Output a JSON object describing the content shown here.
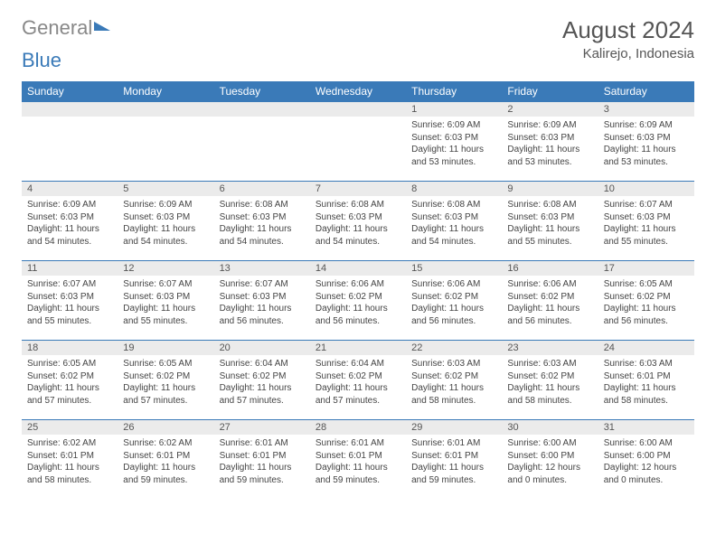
{
  "brand": {
    "part1": "General",
    "part2": "Blue"
  },
  "title": "August 2024",
  "location": "Kalirejo, Indonesia",
  "colors": {
    "header_bg": "#3a7ab8",
    "daynum_bg": "#ebebeb",
    "text": "#444444",
    "title": "#555555"
  },
  "dayHeaders": [
    "Sunday",
    "Monday",
    "Tuesday",
    "Wednesday",
    "Thursday",
    "Friday",
    "Saturday"
  ],
  "weeks": [
    [
      {
        "n": "",
        "sr": "",
        "ss": "",
        "dl": ""
      },
      {
        "n": "",
        "sr": "",
        "ss": "",
        "dl": ""
      },
      {
        "n": "",
        "sr": "",
        "ss": "",
        "dl": ""
      },
      {
        "n": "",
        "sr": "",
        "ss": "",
        "dl": ""
      },
      {
        "n": "1",
        "sr": "Sunrise: 6:09 AM",
        "ss": "Sunset: 6:03 PM",
        "dl": "Daylight: 11 hours and 53 minutes."
      },
      {
        "n": "2",
        "sr": "Sunrise: 6:09 AM",
        "ss": "Sunset: 6:03 PM",
        "dl": "Daylight: 11 hours and 53 minutes."
      },
      {
        "n": "3",
        "sr": "Sunrise: 6:09 AM",
        "ss": "Sunset: 6:03 PM",
        "dl": "Daylight: 11 hours and 53 minutes."
      }
    ],
    [
      {
        "n": "4",
        "sr": "Sunrise: 6:09 AM",
        "ss": "Sunset: 6:03 PM",
        "dl": "Daylight: 11 hours and 54 minutes."
      },
      {
        "n": "5",
        "sr": "Sunrise: 6:09 AM",
        "ss": "Sunset: 6:03 PM",
        "dl": "Daylight: 11 hours and 54 minutes."
      },
      {
        "n": "6",
        "sr": "Sunrise: 6:08 AM",
        "ss": "Sunset: 6:03 PM",
        "dl": "Daylight: 11 hours and 54 minutes."
      },
      {
        "n": "7",
        "sr": "Sunrise: 6:08 AM",
        "ss": "Sunset: 6:03 PM",
        "dl": "Daylight: 11 hours and 54 minutes."
      },
      {
        "n": "8",
        "sr": "Sunrise: 6:08 AM",
        "ss": "Sunset: 6:03 PM",
        "dl": "Daylight: 11 hours and 54 minutes."
      },
      {
        "n": "9",
        "sr": "Sunrise: 6:08 AM",
        "ss": "Sunset: 6:03 PM",
        "dl": "Daylight: 11 hours and 55 minutes."
      },
      {
        "n": "10",
        "sr": "Sunrise: 6:07 AM",
        "ss": "Sunset: 6:03 PM",
        "dl": "Daylight: 11 hours and 55 minutes."
      }
    ],
    [
      {
        "n": "11",
        "sr": "Sunrise: 6:07 AM",
        "ss": "Sunset: 6:03 PM",
        "dl": "Daylight: 11 hours and 55 minutes."
      },
      {
        "n": "12",
        "sr": "Sunrise: 6:07 AM",
        "ss": "Sunset: 6:03 PM",
        "dl": "Daylight: 11 hours and 55 minutes."
      },
      {
        "n": "13",
        "sr": "Sunrise: 6:07 AM",
        "ss": "Sunset: 6:03 PM",
        "dl": "Daylight: 11 hours and 56 minutes."
      },
      {
        "n": "14",
        "sr": "Sunrise: 6:06 AM",
        "ss": "Sunset: 6:02 PM",
        "dl": "Daylight: 11 hours and 56 minutes."
      },
      {
        "n": "15",
        "sr": "Sunrise: 6:06 AM",
        "ss": "Sunset: 6:02 PM",
        "dl": "Daylight: 11 hours and 56 minutes."
      },
      {
        "n": "16",
        "sr": "Sunrise: 6:06 AM",
        "ss": "Sunset: 6:02 PM",
        "dl": "Daylight: 11 hours and 56 minutes."
      },
      {
        "n": "17",
        "sr": "Sunrise: 6:05 AM",
        "ss": "Sunset: 6:02 PM",
        "dl": "Daylight: 11 hours and 56 minutes."
      }
    ],
    [
      {
        "n": "18",
        "sr": "Sunrise: 6:05 AM",
        "ss": "Sunset: 6:02 PM",
        "dl": "Daylight: 11 hours and 57 minutes."
      },
      {
        "n": "19",
        "sr": "Sunrise: 6:05 AM",
        "ss": "Sunset: 6:02 PM",
        "dl": "Daylight: 11 hours and 57 minutes."
      },
      {
        "n": "20",
        "sr": "Sunrise: 6:04 AM",
        "ss": "Sunset: 6:02 PM",
        "dl": "Daylight: 11 hours and 57 minutes."
      },
      {
        "n": "21",
        "sr": "Sunrise: 6:04 AM",
        "ss": "Sunset: 6:02 PM",
        "dl": "Daylight: 11 hours and 57 minutes."
      },
      {
        "n": "22",
        "sr": "Sunrise: 6:03 AM",
        "ss": "Sunset: 6:02 PM",
        "dl": "Daylight: 11 hours and 58 minutes."
      },
      {
        "n": "23",
        "sr": "Sunrise: 6:03 AM",
        "ss": "Sunset: 6:02 PM",
        "dl": "Daylight: 11 hours and 58 minutes."
      },
      {
        "n": "24",
        "sr": "Sunrise: 6:03 AM",
        "ss": "Sunset: 6:01 PM",
        "dl": "Daylight: 11 hours and 58 minutes."
      }
    ],
    [
      {
        "n": "25",
        "sr": "Sunrise: 6:02 AM",
        "ss": "Sunset: 6:01 PM",
        "dl": "Daylight: 11 hours and 58 minutes."
      },
      {
        "n": "26",
        "sr": "Sunrise: 6:02 AM",
        "ss": "Sunset: 6:01 PM",
        "dl": "Daylight: 11 hours and 59 minutes."
      },
      {
        "n": "27",
        "sr": "Sunrise: 6:01 AM",
        "ss": "Sunset: 6:01 PM",
        "dl": "Daylight: 11 hours and 59 minutes."
      },
      {
        "n": "28",
        "sr": "Sunrise: 6:01 AM",
        "ss": "Sunset: 6:01 PM",
        "dl": "Daylight: 11 hours and 59 minutes."
      },
      {
        "n": "29",
        "sr": "Sunrise: 6:01 AM",
        "ss": "Sunset: 6:01 PM",
        "dl": "Daylight: 11 hours and 59 minutes."
      },
      {
        "n": "30",
        "sr": "Sunrise: 6:00 AM",
        "ss": "Sunset: 6:00 PM",
        "dl": "Daylight: 12 hours and 0 minutes."
      },
      {
        "n": "31",
        "sr": "Sunrise: 6:00 AM",
        "ss": "Sunset: 6:00 PM",
        "dl": "Daylight: 12 hours and 0 minutes."
      }
    ]
  ]
}
